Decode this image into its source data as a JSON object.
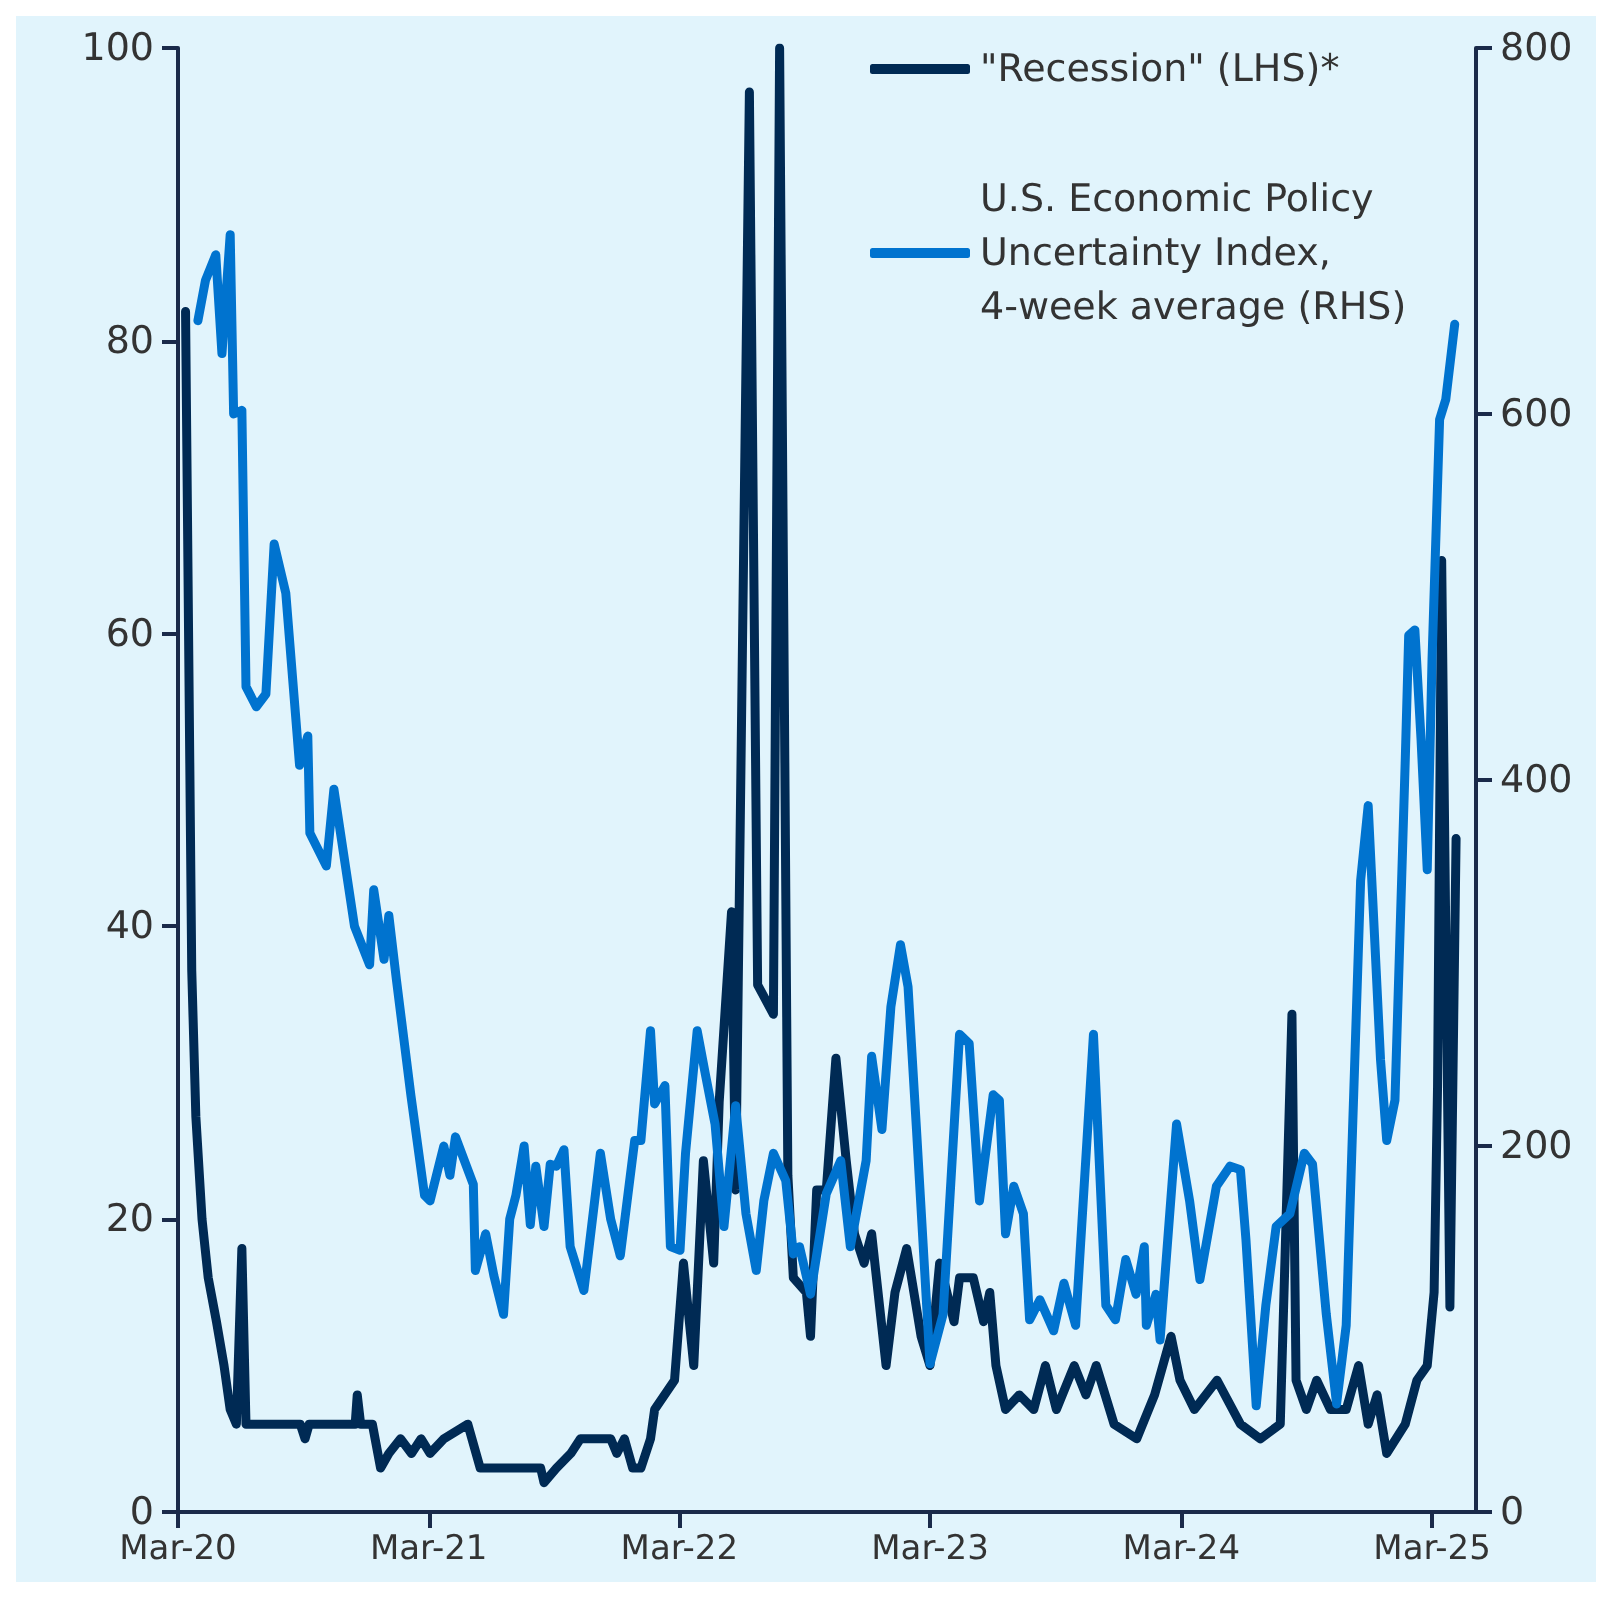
{
  "chart_data": {
    "type": "line",
    "xlim": [
      "2020-03-01",
      "2025-05-04"
    ],
    "xticks": [
      {
        "value": "2020-03-01",
        "label": "Mar-20"
      },
      {
        "value": "2021-03-01",
        "label": "Mar-21"
      },
      {
        "value": "2022-03-01",
        "label": "Mar-22"
      },
      {
        "value": "2023-03-01",
        "label": "Mar-23"
      },
      {
        "value": "2024-03-01",
        "label": "Mar-24"
      },
      {
        "value": "2025-03-01",
        "label": "Mar-25"
      }
    ],
    "ylim": [
      0,
      100
    ],
    "yticks": [
      0,
      20,
      40,
      60,
      80,
      100
    ],
    "y2lim": [
      0,
      800
    ],
    "y2ticks": [
      0,
      200,
      400,
      600,
      800
    ],
    "grid": false,
    "legend": "top right",
    "marker": "none",
    "line_style": "solid",
    "series": [
      {
        "name": "\"Recession\" (LHS)*",
        "color": "#002a54",
        "x": [
          "2020-03-12",
          "2020-03-21",
          "2020-03-27",
          "2020-04-05",
          "2020-04-14",
          "2020-04-26",
          "2020-05-07",
          "2020-05-16",
          "2020-05-25",
          "2020-06-02",
          "2020-06-08",
          "2020-08-26",
          "2020-09-02",
          "2020-09-08",
          "2020-11-14",
          "2020-11-17",
          "2020-11-22",
          "2020-12-09",
          "2020-12-21",
          "2021-01-02",
          "2021-01-19",
          "2021-02-04",
          "2021-02-18",
          "2021-03-03",
          "2021-03-23",
          "2021-04-27",
          "2021-05-15",
          "2021-08-11",
          "2021-08-16",
          "2021-09-03",
          "2021-09-24",
          "2021-10-08",
          "2021-11-21",
          "2021-11-30",
          "2021-12-11",
          "2021-12-23",
          "2022-01-04",
          "2022-01-18",
          "2022-01-24",
          "2022-02-22",
          "2022-03-07",
          "2022-03-22",
          "2022-04-05",
          "2022-04-20",
          "2022-04-28",
          "2022-05-16",
          "2022-05-22",
          "2022-06-11",
          "2022-06-23",
          "2022-07-16",
          "2022-07-25",
          "2022-08-06",
          "2022-08-14",
          "2022-09-02",
          "2022-09-08",
          "2022-09-17",
          "2022-10-01",
          "2022-10-15",
          "2022-10-30",
          "2022-11-11",
          "2022-11-25",
          "2022-12-06",
          "2022-12-27",
          "2023-01-09",
          "2023-01-26",
          "2023-02-16",
          "2023-03-01",
          "2023-03-15",
          "2023-04-05",
          "2023-04-13",
          "2023-05-03",
          "2023-05-18",
          "2023-05-27",
          "2023-06-05",
          "2023-06-19",
          "2023-07-09",
          "2023-07-30",
          "2023-08-16",
          "2023-09-01",
          "2023-09-27",
          "2023-10-14",
          "2023-10-29",
          "2023-11-24",
          "2023-12-27",
          "2024-01-22",
          "2024-02-15",
          "2024-02-28",
          "2024-03-20",
          "2024-04-22",
          "2024-05-26",
          "2024-06-24",
          "2024-07-23",
          "2024-08-09",
          "2024-08-15",
          "2024-08-30",
          "2024-09-14",
          "2024-10-04",
          "2024-10-27",
          "2024-11-14",
          "2024-11-28",
          "2024-12-11",
          "2024-12-25",
          "2025-01-21",
          "2025-02-07",
          "2025-02-22",
          "2025-03-04",
          "2025-03-09",
          "2025-03-15",
          "2025-03-27",
          "2025-04-05"
        ],
        "values": [
          82,
          37,
          27,
          20,
          16,
          13,
          10,
          7,
          6,
          18,
          6,
          6,
          5,
          6,
          6,
          8,
          6,
          6,
          3,
          4,
          5,
          4,
          5,
          4,
          5,
          6,
          3,
          3,
          2,
          3,
          4,
          5,
          5,
          4,
          5,
          3,
          3,
          5,
          7,
          9,
          17,
          10,
          24,
          17,
          28,
          41,
          22,
          97,
          36,
          34,
          100,
          23,
          16,
          15,
          12,
          22,
          22,
          31,
          24,
          19,
          17,
          19,
          10,
          15,
          18,
          12,
          10,
          17,
          13,
          16,
          16,
          13,
          15,
          10,
          7,
          8,
          7,
          10,
          7,
          10,
          8,
          10,
          6,
          5,
          8,
          12,
          9,
          7,
          9,
          6,
          5,
          6,
          34,
          9,
          7,
          9,
          7,
          7,
          10,
          6,
          8,
          4,
          6,
          9,
          10,
          15,
          29,
          65,
          14,
          46
        ]
      },
      {
        "name": "U.S. Economic Policy Uncertainty Index, 4-week average (RHS)",
        "color": "#0073cf",
        "axis": "y2",
        "x": [
          "2020-03-30",
          "2020-04-10",
          "2020-04-25",
          "2020-05-04",
          "2020-05-16",
          "2020-05-21",
          "2020-06-02",
          "2020-06-08",
          "2020-06-23",
          "2020-07-07",
          "2020-07-19",
          "2020-08-05",
          "2020-08-25",
          "2020-09-06",
          "2020-09-09",
          "2020-10-03",
          "2020-10-14",
          "2020-11-13",
          "2020-12-05",
          "2020-12-11",
          "2020-12-26",
          "2021-01-02",
          "2021-01-13",
          "2021-02-03",
          "2021-02-23",
          "2021-03-03",
          "2021-03-23",
          "2021-04-01",
          "2021-04-09",
          "2021-05-05",
          "2021-05-08",
          "2021-05-23",
          "2021-06-04",
          "2021-06-18",
          "2021-06-27",
          "2021-07-06",
          "2021-07-18",
          "2021-07-27",
          "2021-08-04",
          "2021-08-16",
          "2021-08-25",
          "2021-09-03",
          "2021-09-14",
          "2021-09-23",
          "2021-10-13",
          "2021-11-06",
          "2021-11-21",
          "2021-12-05",
          "2021-12-26",
          "2022-01-04",
          "2022-01-18",
          "2022-01-24",
          "2022-02-08",
          "2022-02-16",
          "2022-03-02",
          "2022-03-10",
          "2022-03-27",
          "2022-04-08",
          "2022-04-22",
          "2022-05-05",
          "2022-05-22",
          "2022-06-06",
          "2022-06-21",
          "2022-07-02",
          "2022-07-16",
          "2022-08-03",
          "2022-08-14",
          "2022-08-23",
          "2022-09-08",
          "2022-10-01",
          "2022-10-22",
          "2022-11-05",
          "2022-11-28",
          "2022-12-06",
          "2022-12-21",
          "2023-01-03",
          "2023-01-17",
          "2023-01-28",
          "2023-02-09",
          "2023-03-01",
          "2023-03-20",
          "2023-04-13",
          "2023-04-27",
          "2023-05-12",
          "2023-06-01",
          "2023-06-10",
          "2023-06-19",
          "2023-07-01",
          "2023-07-15",
          "2023-07-24",
          "2023-08-08",
          "2023-08-28",
          "2023-09-12",
          "2023-09-29",
          "2023-10-25",
          "2023-11-12",
          "2023-11-26",
          "2023-12-11",
          "2023-12-26",
          "2024-01-07",
          "2024-01-10",
          "2024-01-24",
          "2024-01-30",
          "2024-02-23",
          "2024-03-13",
          "2024-03-28",
          "2024-04-21",
          "2024-05-11",
          "2024-05-26",
          "2024-06-03",
          "2024-06-18",
          "2024-07-02",
          "2024-07-17",
          "2024-08-06",
          "2024-08-27",
          "2024-09-08",
          "2024-09-28",
          "2024-10-13",
          "2024-10-27",
          "2024-11-17",
          "2024-11-28",
          "2024-12-16",
          "2024-12-25",
          "2025-01-06",
          "2025-01-21",
          "2025-01-26",
          "2025-02-04",
          "2025-02-13",
          "2025-02-22",
          "2025-03-01",
          "2025-03-12",
          "2025-03-21",
          "2025-04-03"
        ],
        "values": [
          651,
          673,
          687,
          633,
          698,
          600,
          602,
          451,
          440,
          447,
          529,
          502,
          408,
          424,
          371,
          353,
          395,
          320,
          299,
          340,
          302,
          326,
          291,
          228,
          173,
          170,
          200,
          184,
          205,
          179,
          132,
          152,
          129,
          108,
          160,
          173,
          200,
          157,
          189,
          156,
          190,
          189,
          198,
          145,
          121,
          196,
          160,
          140,
          203,
          203,
          263,
          223,
          233,
          145,
          143,
          196,
          263,
          239,
          212,
          156,
          222,
          163,
          132,
          170,
          196,
          181,
          141,
          145,
          119,
          174,
          192,
          145,
          192,
          249,
          209,
          276,
          310,
          287,
          211,
          81,
          108,
          261,
          256,
          170,
          228,
          225,
          152,
          178,
          163,
          105,
          116,
          99,
          125,
          102,
          261,
          113,
          105,
          138,
          119,
          145,
          102,
          119,
          94,
          212,
          170,
          127,
          178,
          189,
          187,
          149,
          58,
          113,
          156,
          163,
          196,
          190,
          108,
          59,
          102,
          345,
          386,
          247,
          203,
          225,
          411,
          479,
          482,
          422,
          351,
          466,
          597,
          608,
          649
        ]
      }
    ]
  }
}
